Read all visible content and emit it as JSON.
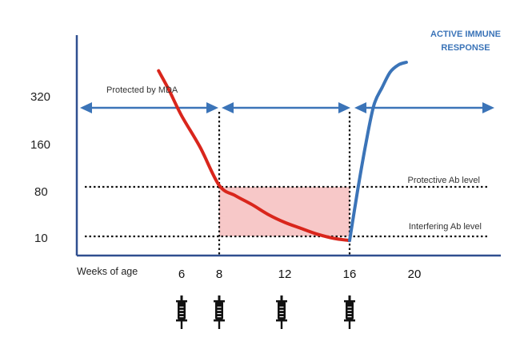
{
  "chart_data": {
    "type": "line",
    "y_ticks": [
      "320",
      "160",
      "80",
      "10"
    ],
    "x_label": "Weeks of age",
    "x_ticks": [
      6,
      8,
      12,
      16,
      20
    ],
    "x_tick_labels": [
      "6",
      "8",
      "12",
      "16",
      "20"
    ],
    "vaccination_weeks": [
      6,
      8,
      12,
      16
    ],
    "series": [
      {
        "name": "",
        "color": "#d9261c",
        "points": [
          [
            4.2,
            460
          ],
          [
            5,
            350
          ],
          [
            6,
            240
          ],
          [
            7,
            150
          ],
          [
            8,
            82
          ],
          [
            9,
            55
          ],
          [
            10,
            38
          ],
          [
            11,
            25
          ],
          [
            12,
            18
          ],
          [
            13,
            14
          ],
          [
            14,
            11
          ],
          [
            15,
            9
          ],
          [
            16,
            8
          ]
        ]
      },
      {
        "name": "",
        "color": "#3b74b8",
        "points": [
          [
            16,
            8
          ],
          [
            16.5,
            70
          ],
          [
            17,
            160
          ],
          [
            17.5,
            280
          ],
          [
            18,
            360
          ],
          [
            18.5,
            450
          ],
          [
            19,
            500
          ],
          [
            19.5,
            520
          ]
        ]
      }
    ],
    "reference_lines": [
      {
        "label": "Protective Ab level",
        "y": 80
      },
      {
        "label": "Interfering Ab level",
        "y": 10
      }
    ],
    "period_labels": {
      "mda": "Protected  by MDA"
    },
    "active_response_label": [
      "ACTIVE IMMUNE",
      "RESPONSE"
    ],
    "shaded_window": {
      "x_from": 8,
      "x_to": 16,
      "y_from": 10,
      "y_to": 80,
      "color": "#f7c8c8"
    },
    "colors": {
      "axis": "#2f4f8f",
      "arrows": "#3b74b8",
      "red": "#d9261c",
      "blue": "#3b74b8"
    }
  }
}
